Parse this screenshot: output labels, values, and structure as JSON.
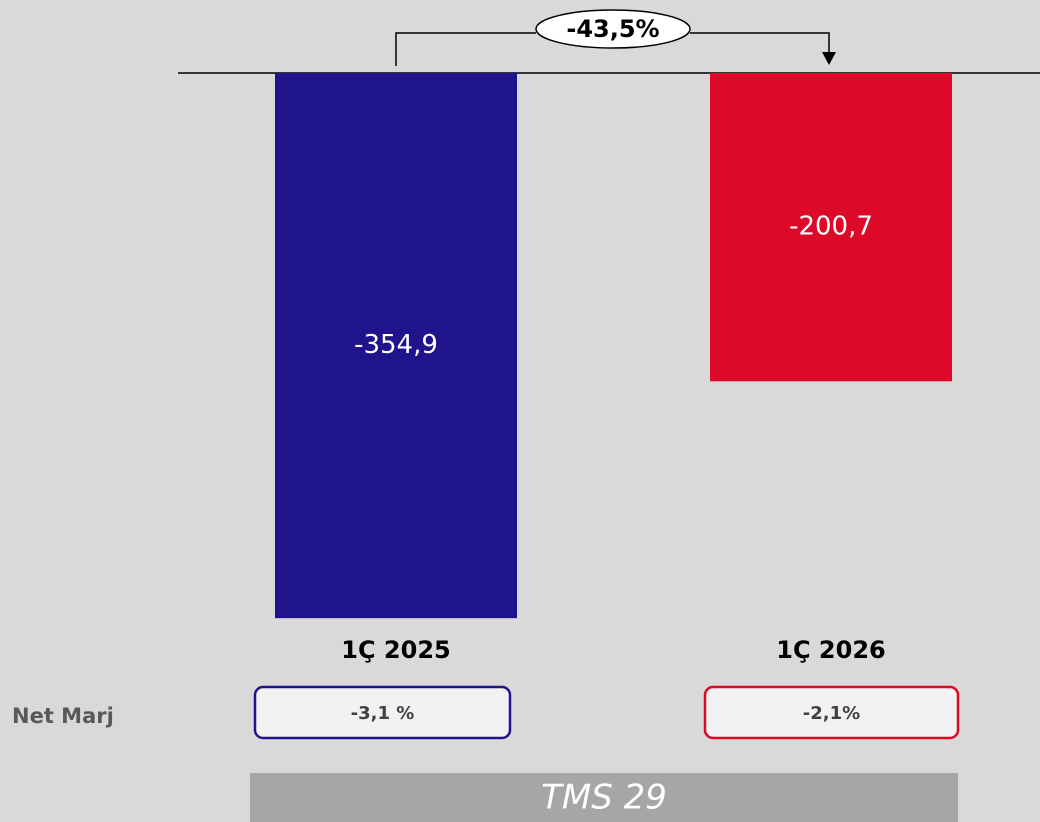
{
  "chart_data": {
    "type": "bar",
    "categories": [
      "1Ç 2025",
      "1Ç 2026"
    ],
    "values": [
      -354.9,
      -200.7
    ],
    "value_labels": [
      "-354,9",
      "-200,7"
    ],
    "colors": [
      "#1f148c",
      "#dc0a28"
    ],
    "ylim": [
      -360,
      0
    ],
    "annotation": "-43,5%",
    "net_margin": {
      "label": "Net Marj",
      "values": [
        "-3,1 %",
        "-2,1%"
      ]
    },
    "footer": "TMS 29"
  }
}
